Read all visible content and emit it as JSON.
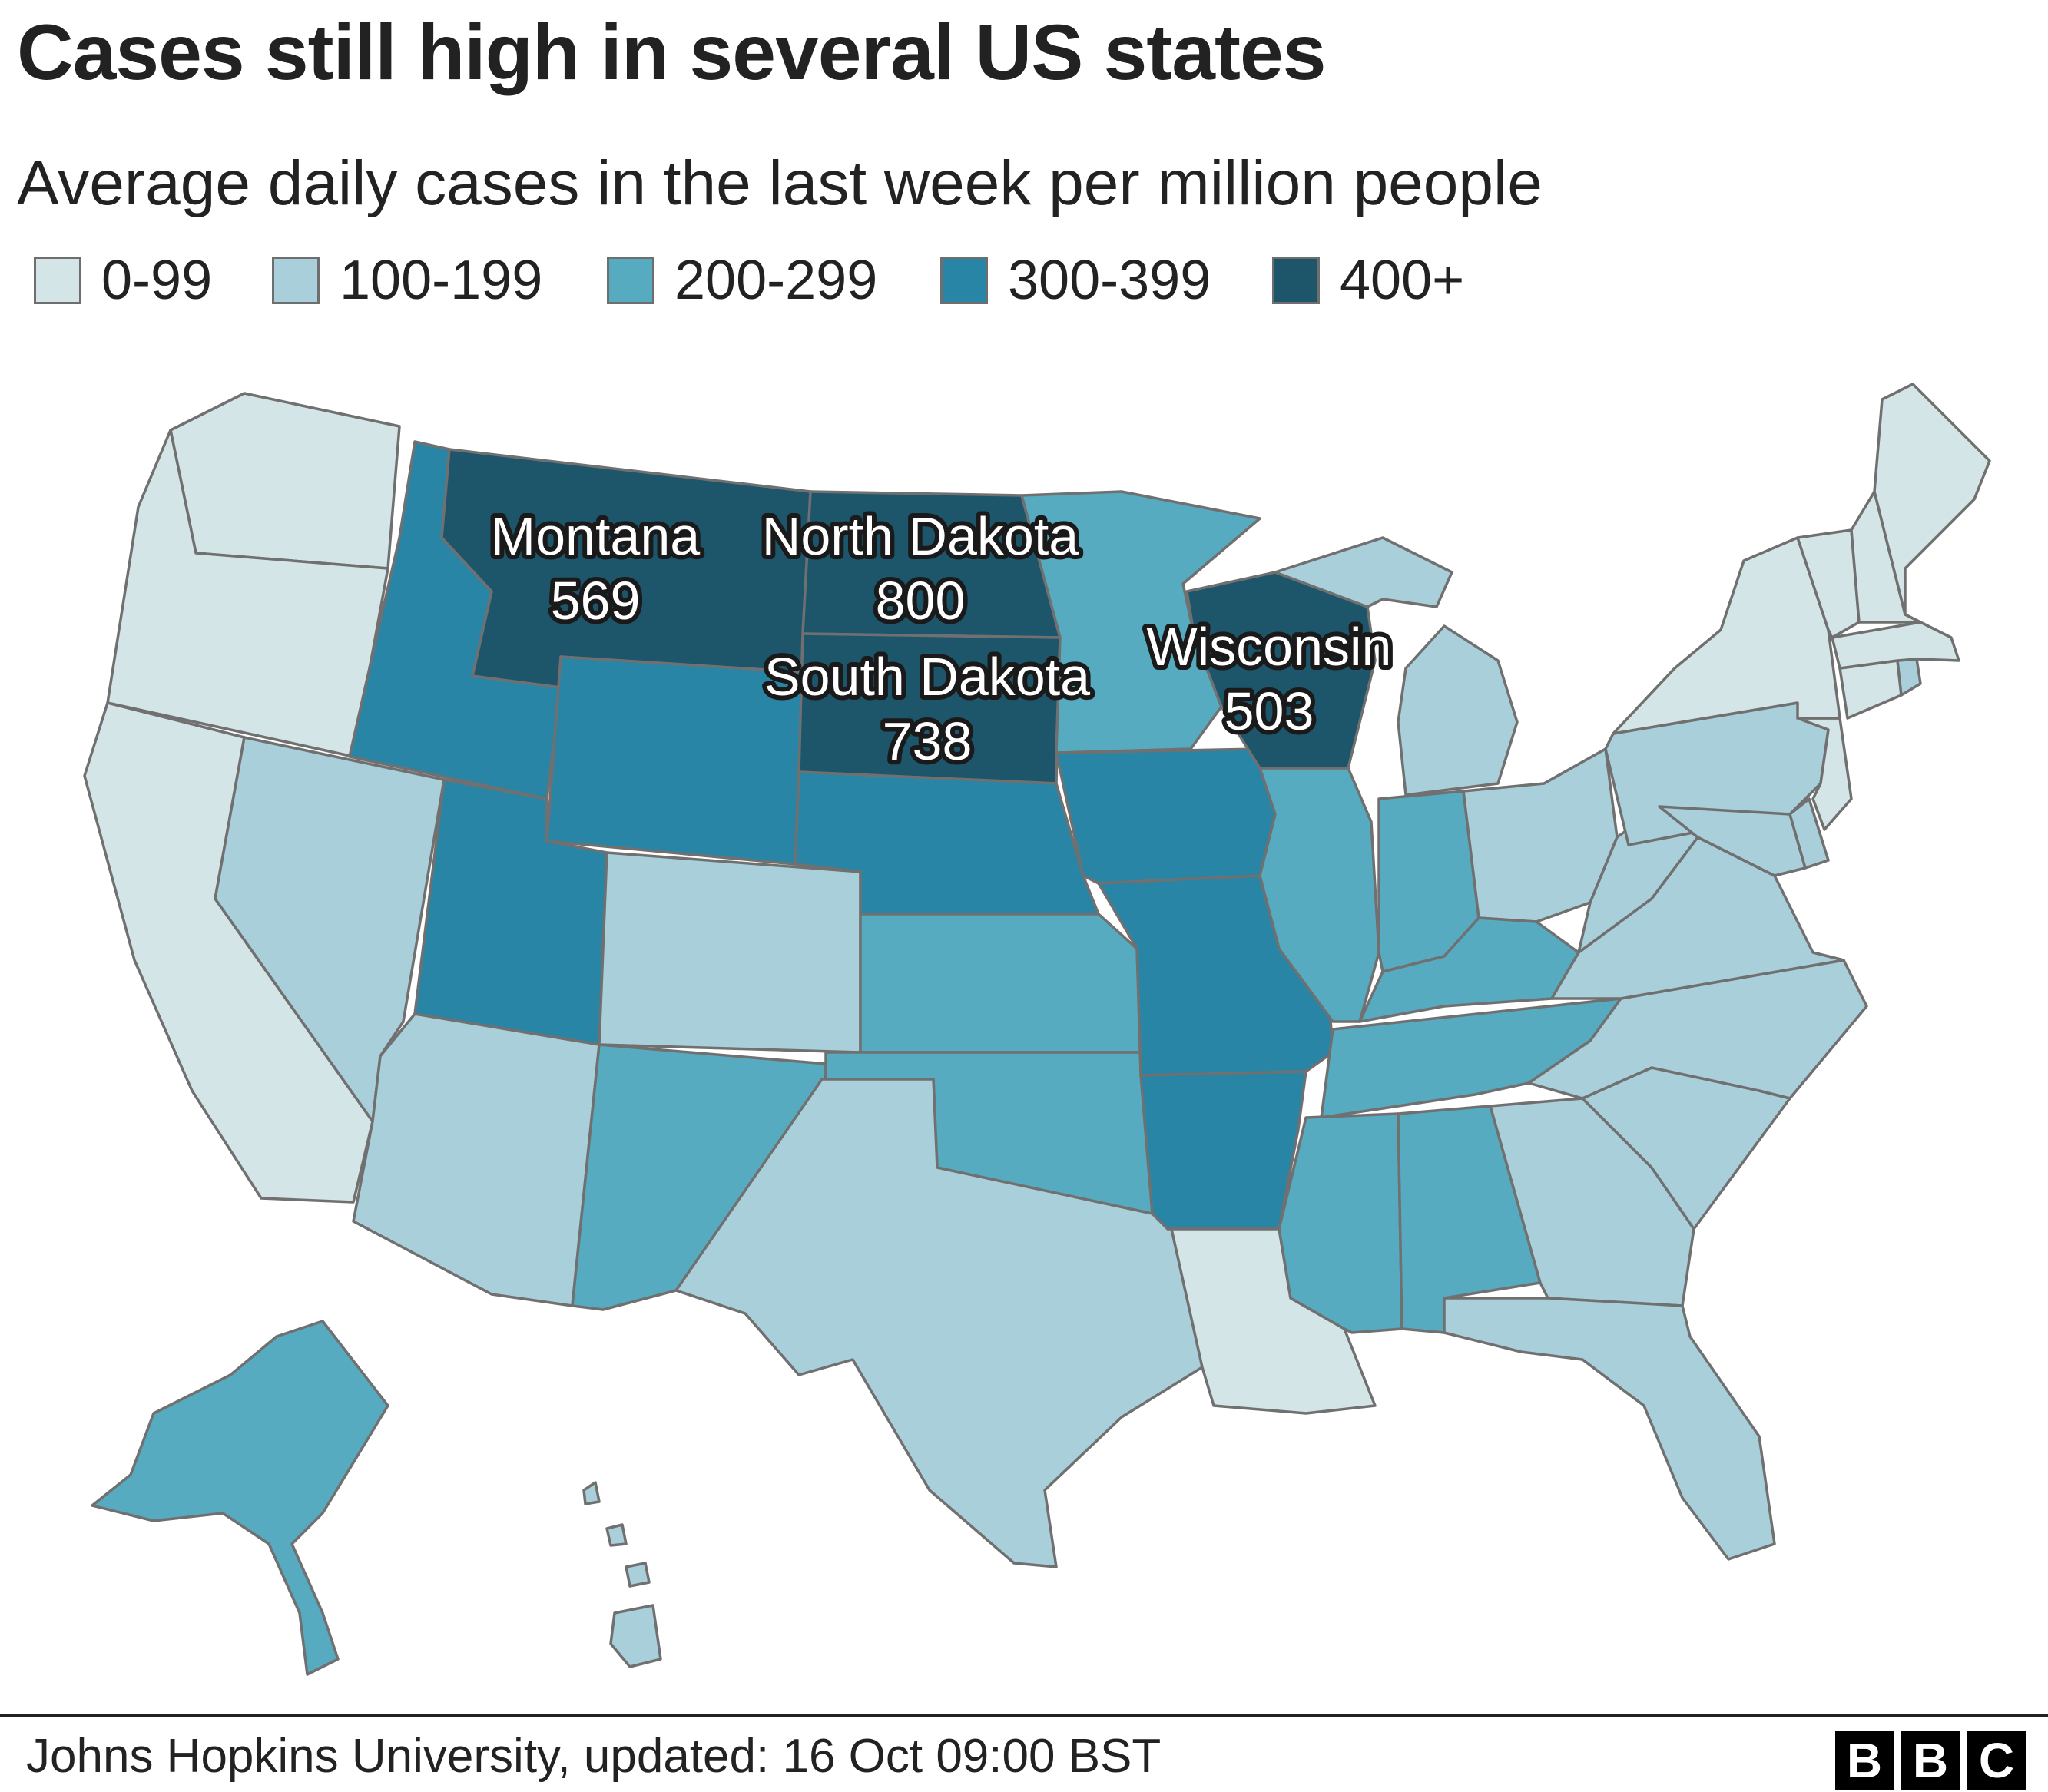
{
  "title": "Cases still high in several US states",
  "subtitle": "Average daily cases in the last week per million people",
  "legend": [
    {
      "label": "0-99",
      "color": "#d4e5e7"
    },
    {
      "label": "100-199",
      "color": "#a9cfdb"
    },
    {
      "label": "200-299",
      "color": "#56abc1"
    },
    {
      "label": "300-399",
      "color": "#2985a6"
    },
    {
      "label": "400+",
      "color": "#1d566b"
    }
  ],
  "callouts": [
    {
      "state": "Montana",
      "value": "569"
    },
    {
      "state": "North Dakota",
      "value": "800"
    },
    {
      "state": "South Dakota",
      "value": "738"
    },
    {
      "state": "Wisconsin",
      "value": "503"
    }
  ],
  "state_categories": {
    "Washington": "0-99",
    "Oregon": "0-99",
    "California": "0-99",
    "Louisiana": "0-99",
    "New York": "0-99",
    "Vermont": "0-99",
    "New Hampshire": "0-99",
    "Maine": "0-99",
    "Massachusetts": "0-99",
    "Connecticut": "0-99",
    "New Jersey": "0-99",
    "Rhode Island": "100-199",
    "Nevada": "100-199",
    "Arizona": "100-199",
    "Colorado": "100-199",
    "Texas": "100-199",
    "Michigan": "100-199",
    "Ohio": "100-199",
    "Pennsylvania": "100-199",
    "West Virginia": "100-199",
    "Virginia": "100-199",
    "Maryland": "100-199",
    "Delaware": "100-199",
    "North Carolina": "100-199",
    "South Carolina": "100-199",
    "Georgia": "100-199",
    "Florida": "100-199",
    "Hawaii": "100-199",
    "Alaska": "200-299",
    "New Mexico": "200-299",
    "Kansas": "200-299",
    "Oklahoma": "200-299",
    "Minnesota": "200-299",
    "Illinois": "200-299",
    "Indiana": "200-299",
    "Kentucky": "200-299",
    "Tennessee": "200-299",
    "Mississippi": "200-299",
    "Alabama": "200-299",
    "Idaho": "300-399",
    "Utah": "300-399",
    "Wyoming": "300-399",
    "Nebraska": "300-399",
    "Iowa": "300-399",
    "Missouri": "300-399",
    "Arkansas": "300-399",
    "Montana": "400+",
    "North Dakota": "400+",
    "South Dakota": "400+",
    "Wisconsin": "400+"
  },
  "footer": {
    "source": "Johns Hopkins University, updated: 16 Oct 09:00 BST",
    "logo": [
      "B",
      "B",
      "C"
    ]
  }
}
